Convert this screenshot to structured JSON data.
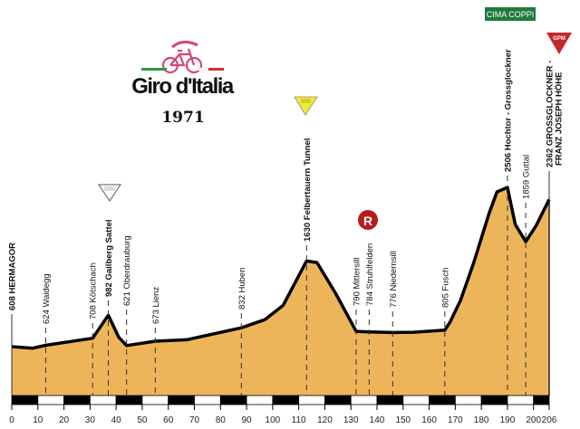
{
  "logo": {
    "brand": "Giro d'Italia",
    "year": "1971"
  },
  "badges": {
    "cima_coppi": "CIMA COPPI",
    "gpm": "GPM",
    "feed_zone": "R"
  },
  "colors": {
    "profile_fill": "#EDB55A",
    "profile_line": "#000000",
    "cima_coppi": "#1F7A3C",
    "gpm_red": "#C62828",
    "gpm_yellow": "#F2EA3A",
    "gpm_white": "#FFFFFF",
    "feed_zone": "#B71C1C"
  },
  "chart_data": {
    "type": "area",
    "title": "",
    "xlabel": "",
    "ylabel": "",
    "xlim": [
      0,
      206
    ],
    "x_ticks": [
      "0",
      "10",
      "20",
      "30",
      "40",
      "50",
      "60",
      "70",
      "80",
      "90",
      "100",
      "110",
      "120",
      "130",
      "140",
      "150",
      "160",
      "170",
      "180",
      "190",
      "200",
      "206"
    ],
    "grid": false,
    "profile": [
      [
        0,
        608
      ],
      [
        8,
        590
      ],
      [
        13,
        624
      ],
      [
        31,
        708
      ],
      [
        37,
        982
      ],
      [
        41,
        720
      ],
      [
        44,
        621
      ],
      [
        55,
        673
      ],
      [
        67,
        690
      ],
      [
        88,
        832
      ],
      [
        97,
        930
      ],
      [
        104,
        1100
      ],
      [
        113,
        1630
      ],
      [
        117,
        1610
      ],
      [
        124,
        1250
      ],
      [
        132,
        790
      ],
      [
        137,
        784
      ],
      [
        146,
        776
      ],
      [
        154,
        780
      ],
      [
        166,
        805
      ],
      [
        168,
        900
      ],
      [
        172,
        1158
      ],
      [
        177,
        1600
      ],
      [
        183,
        2200
      ],
      [
        186,
        2453
      ],
      [
        190,
        2506
      ],
      [
        193,
        2064
      ],
      [
        197,
        1859
      ],
      [
        201,
        2050
      ],
      [
        206,
        2362
      ]
    ],
    "stops": [
      {
        "km": 0,
        "elevation": 608,
        "label": "608 HERMAGOR",
        "bold": true
      },
      {
        "km": 13,
        "elevation": 624,
        "label": "624 Waidegg",
        "bold": false
      },
      {
        "km": 31,
        "elevation": 708,
        "label": "708 Kötschach",
        "bold": false
      },
      {
        "km": 37,
        "elevation": 982,
        "label": "982 Gailberg Sattel",
        "bold": true,
        "climb": "white"
      },
      {
        "km": 44,
        "elevation": 621,
        "label": "621 Oberdrauburg",
        "bold": false
      },
      {
        "km": 55,
        "elevation": 673,
        "label": "673 Lienz",
        "bold": false
      },
      {
        "km": 88,
        "elevation": 832,
        "label": "832 Huben",
        "bold": false
      },
      {
        "km": 113,
        "elevation": 1630,
        "label": "1630 Felbertauern Tunnel",
        "bold": true,
        "climb": "yellow"
      },
      {
        "km": 132,
        "elevation": 790,
        "label": "790 Mittersill",
        "bold": false
      },
      {
        "km": 137,
        "elevation": 784,
        "label": "784 Struhlfelden",
        "bold": false
      },
      {
        "km": 146,
        "elevation": 776,
        "label": "776 Niedernsill",
        "bold": false
      },
      {
        "km": 166,
        "elevation": 805,
        "label": "805 Fusch",
        "bold": false
      },
      {
        "km": 190,
        "elevation": 2506,
        "label": "2506 Hochtor - Grossglockner",
        "bold": true,
        "climb": "cima coppi"
      },
      {
        "km": 197,
        "elevation": 1859,
        "label": "1859 Guttal",
        "bold": false
      },
      {
        "km": 206,
        "elevation": 2362,
        "label": "2362 GROSSGLOCKNER -",
        "label2": "FRANZ JOSEPH HÖHE",
        "bold": true,
        "climb": "red"
      }
    ]
  }
}
